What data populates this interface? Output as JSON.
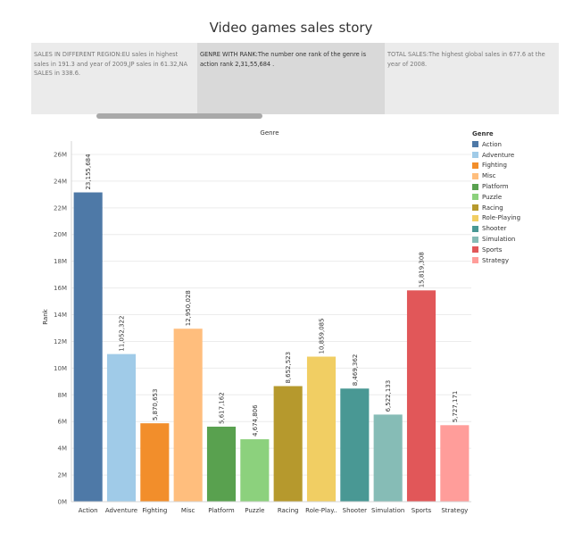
{
  "page_title": "Video games sales story",
  "story_points": [
    {
      "text": "SALES IN DIFFERENT REGION:EU sales in highest sales in 191.3 and year of 2009,JP sales in 61.32,NA SALES in 338.6.",
      "active": false
    },
    {
      "text": "GENRE WITH RANK:The number one rank of the genre is action rank  2,31,55,684 .",
      "active": true
    },
    {
      "text": "TOTAL SALES:The highest global sales in 677.6 at the year of 2008.",
      "active": false
    }
  ],
  "legend": {
    "title": "Genre"
  },
  "chart_data": {
    "type": "bar",
    "title": "Genre",
    "xlabel": "",
    "ylabel": "Rank",
    "ylim": [
      0,
      27000000
    ],
    "y_ticks": [
      0,
      2000000,
      4000000,
      6000000,
      8000000,
      10000000,
      12000000,
      14000000,
      16000000,
      18000000,
      20000000,
      22000000,
      24000000,
      26000000
    ],
    "y_tick_labels": [
      "0M",
      "2M",
      "4M",
      "6M",
      "8M",
      "10M",
      "12M",
      "14M",
      "16M",
      "18M",
      "20M",
      "22M",
      "24M",
      "26M"
    ],
    "categories": [
      "Action",
      "Adventure",
      "Fighting",
      "Misc",
      "Platform",
      "Puzzle",
      "Racing",
      "Role-Playing",
      "Shooter",
      "Simulation",
      "Sports",
      "Strategy"
    ],
    "category_tick_labels": [
      "Action",
      "Adventure",
      "Fighting",
      "Misc",
      "Platform",
      "Puzzle",
      "Racing",
      "Role-Play..",
      "Shooter",
      "Simulation",
      "Sports",
      "Strategy"
    ],
    "values": [
      23155684,
      11052322,
      5870653,
      12950028,
      5617162,
      4674806,
      8652523,
      10859085,
      8469362,
      6522133,
      15819308,
      5727171
    ],
    "data_labels": [
      "23,155,684",
      "11,052,322",
      "5,870,653",
      "12,950,028",
      "5,617,162",
      "4,674,806",
      "8,652,523",
      "10,859,085",
      "8,469,362",
      "6,522,133",
      "15,819,308",
      "5,727,171"
    ],
    "colors": [
      "#4e79a7",
      "#a0cbe8",
      "#f28e2b",
      "#ffbe7d",
      "#59a14f",
      "#8cd17d",
      "#b6992d",
      "#f1ce63",
      "#499894",
      "#86bcb6",
      "#e15759",
      "#ff9d9a"
    ],
    "grid": true,
    "legend_position": "right"
  }
}
